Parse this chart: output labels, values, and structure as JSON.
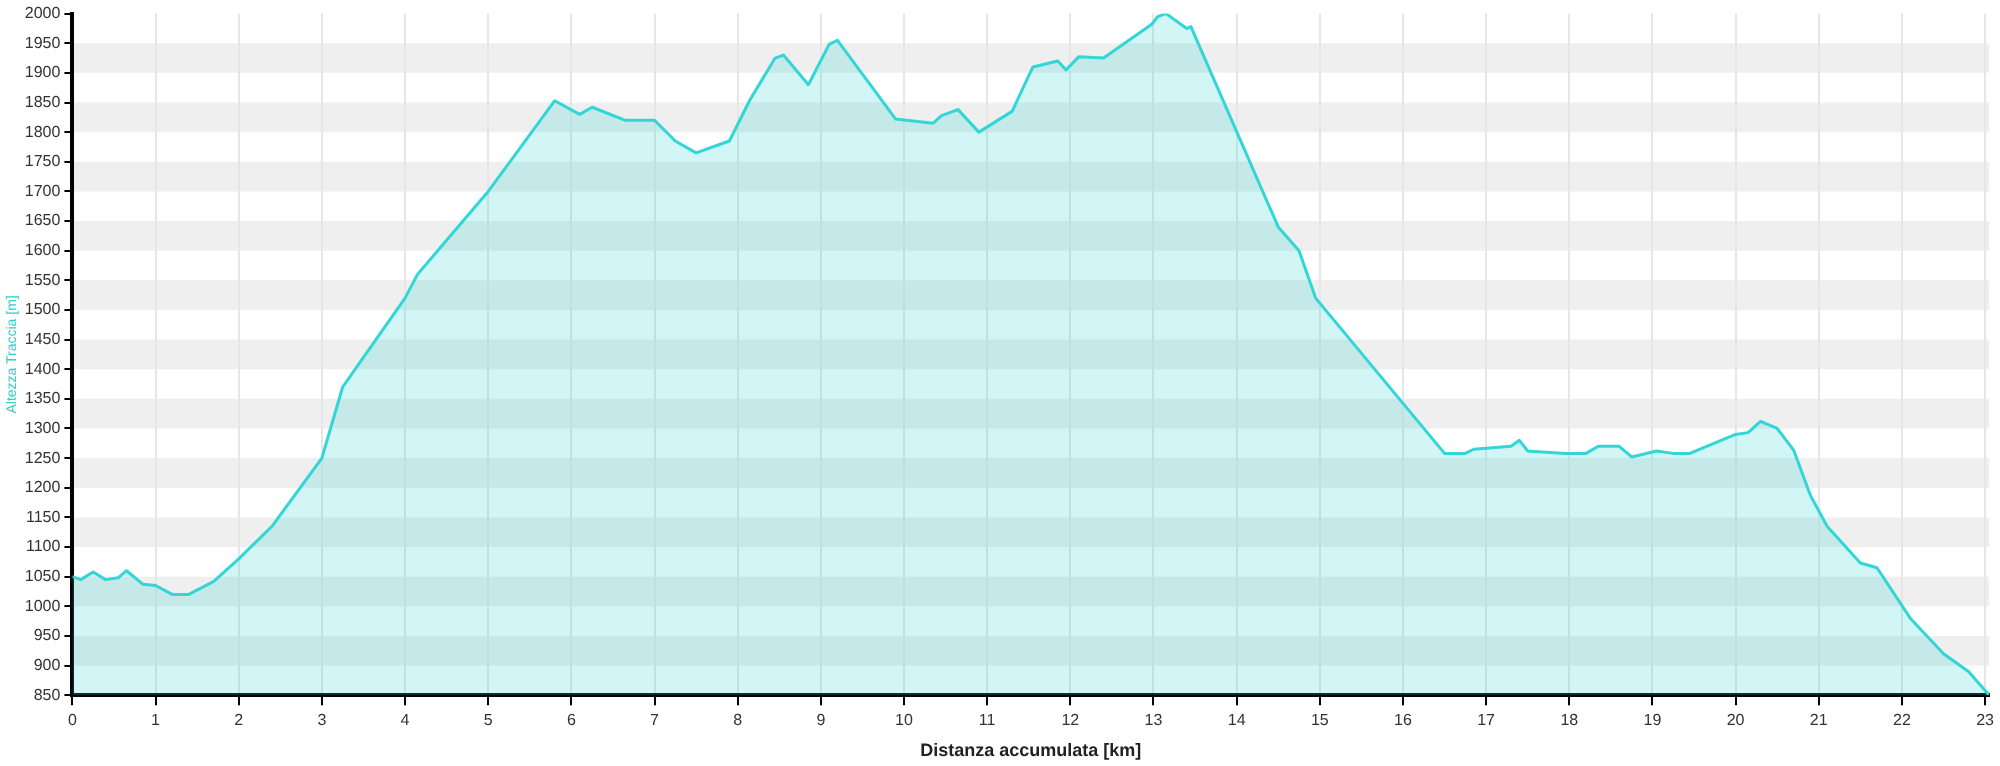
{
  "chart_data": {
    "type": "area",
    "xlabel": "Distanza accumulata [km]",
    "ylabel": "Altezza Traccia [m]",
    "series": [
      {
        "color": "#33d6d6",
        "x": [
          0,
          0.1,
          0.25,
          0.4,
          0.55,
          0.65,
          0.85,
          1.0,
          1.2,
          1.4,
          1.7,
          2.0,
          2.4,
          3.0,
          3.25,
          3.5,
          4.0,
          4.15,
          5.0,
          5.8,
          6.1,
          6.25,
          6.65,
          7.0,
          7.25,
          7.5,
          7.9,
          8.15,
          8.45,
          8.55,
          8.85,
          9.1,
          9.2,
          9.9,
          10.35,
          10.45,
          10.65,
          10.9,
          11.3,
          11.55,
          11.85,
          11.95,
          12.1,
          12.4,
          12.55,
          12.98,
          13.05,
          13.15,
          13.4,
          13.45,
          14.5,
          14.75,
          14.95,
          16.5,
          16.75,
          16.85,
          17.3,
          17.4,
          17.5,
          17.95,
          18.2,
          18.35,
          18.6,
          18.75,
          19.05,
          19.25,
          19.45,
          20.0,
          20.15,
          20.3,
          20.5,
          20.7,
          20.9,
          21.1,
          21.5,
          21.7,
          22.1,
          22.5,
          22.8,
          23.05
        ],
        "values": [
          1050,
          1045,
          1058,
          1045,
          1048,
          1060,
          1037,
          1035,
          1020,
          1020,
          1042,
          1080,
          1135,
          1250,
          1370,
          1420,
          1520,
          1560,
          1700,
          1853,
          1830,
          1842,
          1820,
          1820,
          1785,
          1765,
          1785,
          1855,
          1925,
          1930,
          1880,
          1948,
          1955,
          1822,
          1815,
          1828,
          1838,
          1800,
          1835,
          1910,
          1920,
          1905,
          1927,
          1925,
          1940,
          1982,
          1995,
          2000,
          1975,
          1978,
          1640,
          1600,
          1520,
          1258,
          1258,
          1265,
          1270,
          1280,
          1262,
          1258,
          1258,
          1270,
          1270,
          1252,
          1262,
          1258,
          1258,
          1290,
          1293,
          1312,
          1300,
          1263,
          1187,
          1135,
          1073,
          1065,
          980,
          920,
          890,
          850
        ]
      }
    ],
    "xlim": [
      0,
      23.05
    ],
    "xticks": [
      0,
      1,
      2,
      3,
      4,
      5,
      6,
      7,
      8,
      9,
      10,
      11,
      12,
      13,
      14,
      15,
      16,
      17,
      18,
      19,
      20,
      21,
      22,
      23
    ],
    "ylim": [
      850,
      2000
    ],
    "yticks": [
      850,
      900,
      950,
      1000,
      1050,
      1100,
      1150,
      1200,
      1250,
      1300,
      1350,
      1400,
      1450,
      1500,
      1550,
      1600,
      1650,
      1700,
      1750,
      1800,
      1850,
      1900,
      1950,
      2000
    ],
    "grid": true,
    "legend": false,
    "marker": "none"
  }
}
